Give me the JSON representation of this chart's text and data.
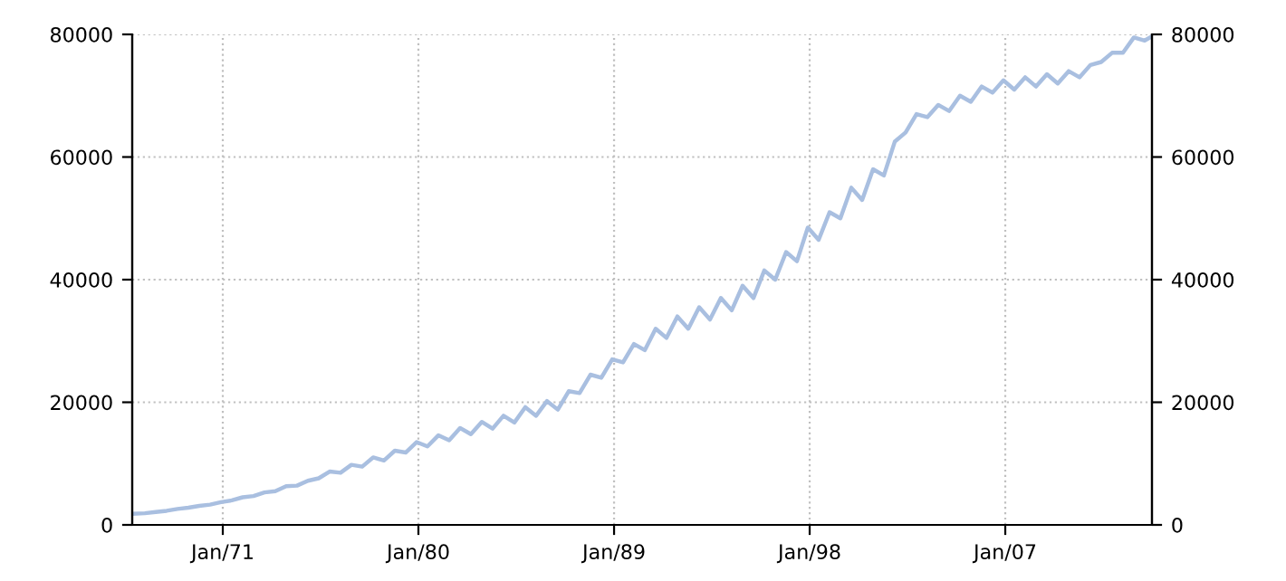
{
  "chart_data": {
    "type": "line",
    "x": [
      "1966-11",
      "1967-06",
      "1967-12",
      "1968-06",
      "1968-12",
      "1969-06",
      "1969-12",
      "1970-06",
      "1970-12",
      "1971-06",
      "1971-12",
      "1972-06",
      "1972-12",
      "1973-06",
      "1973-12",
      "1974-06",
      "1974-12",
      "1975-06",
      "1975-12",
      "1976-06",
      "1976-12",
      "1977-06",
      "1977-12",
      "1978-06",
      "1978-12",
      "1979-06",
      "1979-12",
      "1980-06",
      "1980-12",
      "1981-06",
      "1981-12",
      "1982-06",
      "1982-12",
      "1983-06",
      "1983-12",
      "1984-06",
      "1984-12",
      "1985-06",
      "1985-12",
      "1986-06",
      "1986-12",
      "1987-06",
      "1987-12",
      "1988-06",
      "1988-12",
      "1989-06",
      "1989-12",
      "1990-06",
      "1990-12",
      "1991-06",
      "1991-12",
      "1992-06",
      "1992-12",
      "1993-06",
      "1993-12",
      "1994-06",
      "1994-12",
      "1995-06",
      "1995-12",
      "1996-06",
      "1996-12",
      "1997-06",
      "1997-12",
      "1998-06",
      "1998-12",
      "1999-06",
      "1999-12",
      "2000-06",
      "2000-12",
      "2001-06",
      "2001-12",
      "2002-06",
      "2002-12",
      "2003-06",
      "2003-12",
      "2004-06",
      "2004-12",
      "2005-06",
      "2005-12",
      "2006-06",
      "2006-12",
      "2007-06",
      "2007-12",
      "2008-06",
      "2008-12",
      "2009-06",
      "2009-12",
      "2010-06",
      "2010-12",
      "2011-06",
      "2011-12",
      "2012-06",
      "2012-12",
      "2013-06",
      "2013-09"
    ],
    "series": [
      {
        "color": "#a9bfe0",
        "values": [
          1800,
          1900,
          2100,
          2300,
          2600,
          2800,
          3100,
          3300,
          3700,
          4000,
          4500,
          4700,
          5300,
          5500,
          6300,
          6400,
          7200,
          7600,
          8700,
          8500,
          9800,
          9500,
          11000,
          10500,
          12100,
          11800,
          13500,
          12800,
          14600,
          13800,
          15800,
          14800,
          16800,
          15700,
          17800,
          16700,
          19200,
          17800,
          20200,
          18800,
          21800,
          21500,
          24500,
          24000,
          27000,
          26500,
          29500,
          28500,
          32000,
          30500,
          34000,
          32000,
          35500,
          33500,
          37000,
          35000,
          39000,
          37000,
          41500,
          40000,
          44500,
          43000,
          48500,
          46500,
          51000,
          50000,
          55000,
          53000,
          58000,
          57000,
          62500,
          64000,
          67000,
          66500,
          68500,
          67500,
          70000,
          69000,
          71500,
          70500,
          72500,
          71000,
          73000,
          71500,
          73500,
          72000,
          74000,
          73000,
          75000,
          75500,
          77000,
          77000,
          79500,
          79000,
          79500
        ]
      }
    ],
    "xlim": [
      "1966-11",
      "2013-10"
    ],
    "xticks": [
      {
        "value": "1971-01",
        "label": "Jan/71"
      },
      {
        "value": "1980-01",
        "label": "Jan/80"
      },
      {
        "value": "1989-01",
        "label": "Jan/89"
      },
      {
        "value": "1998-01",
        "label": "Jan/98"
      },
      {
        "value": "2007-01",
        "label": "Jan/07"
      }
    ],
    "ylim": [
      0,
      80000
    ],
    "yticks": [
      0,
      20000,
      40000,
      60000,
      80000
    ],
    "y2lim": [
      0,
      80000
    ],
    "y2ticks": [
      0,
      20000,
      40000,
      60000,
      80000
    ],
    "grid": true,
    "line_style": "solid"
  }
}
